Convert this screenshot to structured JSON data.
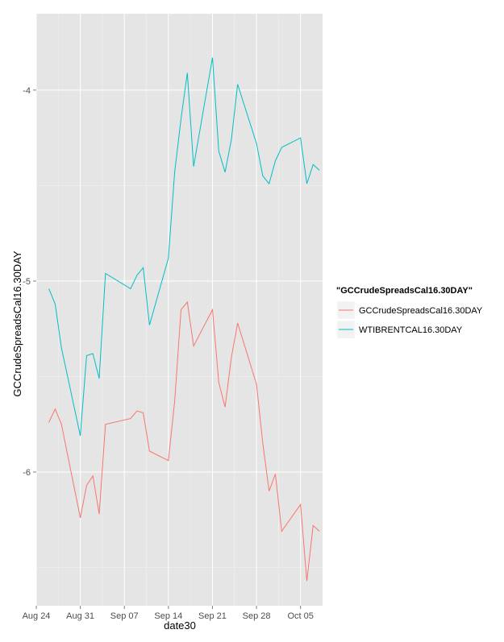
{
  "chart_data": {
    "type": "line",
    "xlabel": "date30",
    "ylabel": "GCCrudeSpreadsCal16.30DAY",
    "x_ticks": [
      "Aug 24",
      "Aug 31",
      "Sep 07",
      "Sep 14",
      "Sep 21",
      "Sep 28",
      "Oct 05"
    ],
    "y_ticks": [
      -4,
      -5,
      -6
    ],
    "ylim": [
      -6.7,
      -3.6
    ],
    "xlim": [
      "2015-08-24",
      "2015-10-08"
    ],
    "grid": true,
    "legend": {
      "title": "\"GCCrudeSpreadsCal16.30DAY\"",
      "position": "right"
    },
    "series": [
      {
        "name": "GCCrudeSpreadsCal16.30DAY",
        "color": "#F8766D",
        "points": [
          [
            "2015-08-26",
            -5.74
          ],
          [
            "2015-08-27",
            -5.67
          ],
          [
            "2015-08-28",
            -5.75
          ],
          [
            "2015-08-31",
            -6.24
          ],
          [
            "2015-09-01",
            -6.07
          ],
          [
            "2015-09-02",
            -6.02
          ],
          [
            "2015-09-03",
            -6.22
          ],
          [
            "2015-09-04",
            -5.75
          ],
          [
            "2015-09-08",
            -5.72
          ],
          [
            "2015-09-09",
            -5.68
          ],
          [
            "2015-09-10",
            -5.69
          ],
          [
            "2015-09-11",
            -5.89
          ],
          [
            "2015-09-14",
            -5.94
          ],
          [
            "2015-09-15",
            -5.63
          ],
          [
            "2015-09-16",
            -5.15
          ],
          [
            "2015-09-17",
            -5.11
          ],
          [
            "2015-09-18",
            -5.34
          ],
          [
            "2015-09-21",
            -5.15
          ],
          [
            "2015-09-22",
            -5.53
          ],
          [
            "2015-09-23",
            -5.66
          ],
          [
            "2015-09-24",
            -5.4
          ],
          [
            "2015-09-25",
            -5.22
          ],
          [
            "2015-09-28",
            -5.54
          ],
          [
            "2015-09-29",
            -5.85
          ],
          [
            "2015-09-30",
            -6.1
          ],
          [
            "2015-10-01",
            -6.01
          ],
          [
            "2015-10-02",
            -6.31
          ],
          [
            "2015-10-05",
            -6.17
          ],
          [
            "2015-10-06",
            -6.57
          ],
          [
            "2015-10-07",
            -6.28
          ],
          [
            "2015-10-08",
            -6.31
          ]
        ]
      },
      {
        "name": "WTIBRENTCAL16.30DAY",
        "color": "#00BFC4",
        "points": [
          [
            "2015-08-26",
            -5.04
          ],
          [
            "2015-08-27",
            -5.12
          ],
          [
            "2015-08-28",
            -5.35
          ],
          [
            "2015-08-31",
            -5.81
          ],
          [
            "2015-09-01",
            -5.39
          ],
          [
            "2015-09-02",
            -5.38
          ],
          [
            "2015-09-03",
            -5.51
          ],
          [
            "2015-09-04",
            -4.96
          ],
          [
            "2015-09-08",
            -5.04
          ],
          [
            "2015-09-09",
            -4.97
          ],
          [
            "2015-09-10",
            -4.93
          ],
          [
            "2015-09-11",
            -5.23
          ],
          [
            "2015-09-14",
            -4.88
          ],
          [
            "2015-09-15",
            -4.43
          ],
          [
            "2015-09-16",
            -4.15
          ],
          [
            "2015-09-17",
            -3.91
          ],
          [
            "2015-09-18",
            -4.4
          ],
          [
            "2015-09-21",
            -3.83
          ],
          [
            "2015-09-22",
            -4.32
          ],
          [
            "2015-09-23",
            -4.43
          ],
          [
            "2015-09-24",
            -4.26
          ],
          [
            "2015-09-25",
            -3.97
          ],
          [
            "2015-09-28",
            -4.28
          ],
          [
            "2015-09-29",
            -4.45
          ],
          [
            "2015-09-30",
            -4.49
          ],
          [
            "2015-10-01",
            -4.37
          ],
          [
            "2015-10-02",
            -4.3
          ],
          [
            "2015-10-05",
            -4.25
          ],
          [
            "2015-10-06",
            -4.49
          ],
          [
            "2015-10-07",
            -4.39
          ],
          [
            "2015-10-08",
            -4.42
          ]
        ]
      }
    ]
  }
}
